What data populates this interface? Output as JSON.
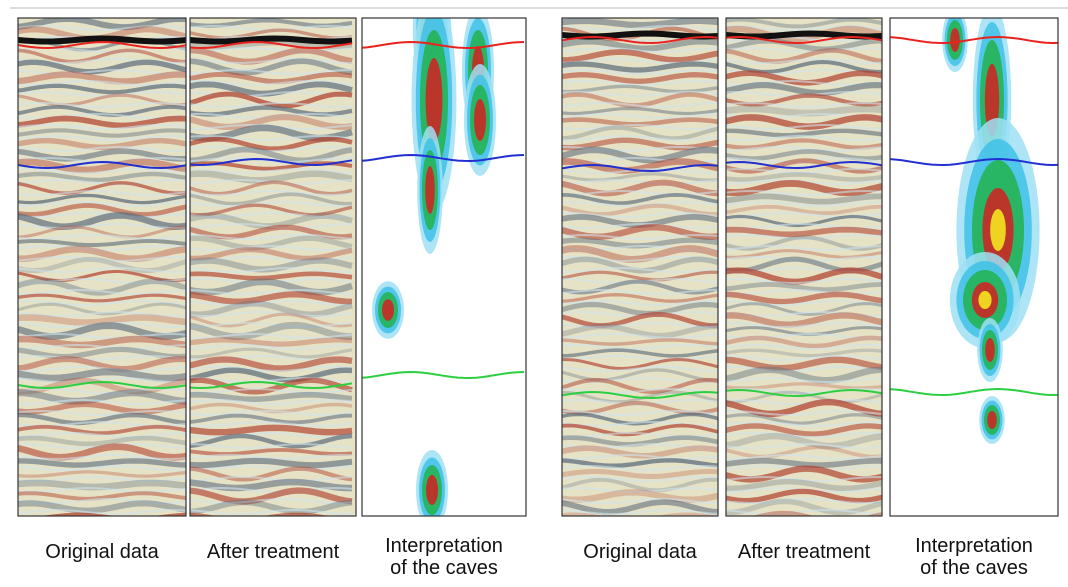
{
  "groups": [
    {
      "panels": [
        {
          "caption": "Original data"
        },
        {
          "caption": "After treatment"
        },
        {
          "caption": [
            "Interpretation",
            "of the caves"
          ]
        }
      ]
    },
    {
      "panels": [
        {
          "caption": "Original data"
        },
        {
          "caption": "After treatment"
        },
        {
          "caption": [
            "Interpretation",
            "of the caves"
          ]
        }
      ]
    }
  ]
}
